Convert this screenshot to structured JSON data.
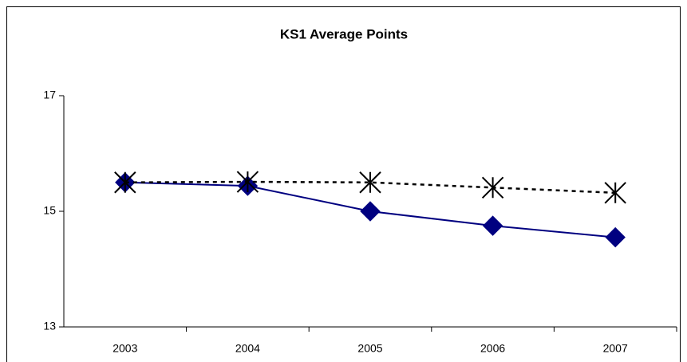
{
  "chart_data": {
    "type": "line",
    "title": "KS1 Average Points",
    "categories": [
      "2003",
      "2004",
      "2005",
      "2006",
      "2007"
    ],
    "series": [
      {
        "color": "#000080",
        "marker": "diamond",
        "dash": "solid",
        "values": [
          15.5,
          15.44,
          15.0,
          14.75,
          14.55
        ]
      },
      {
        "color": "#000000",
        "marker": "star",
        "dash": "dotted",
        "values": [
          15.5,
          15.51,
          15.5,
          15.41,
          15.32
        ]
      }
    ],
    "ylim": [
      13,
      17
    ],
    "yticks": [
      13,
      15,
      17
    ],
    "grid": false
  }
}
